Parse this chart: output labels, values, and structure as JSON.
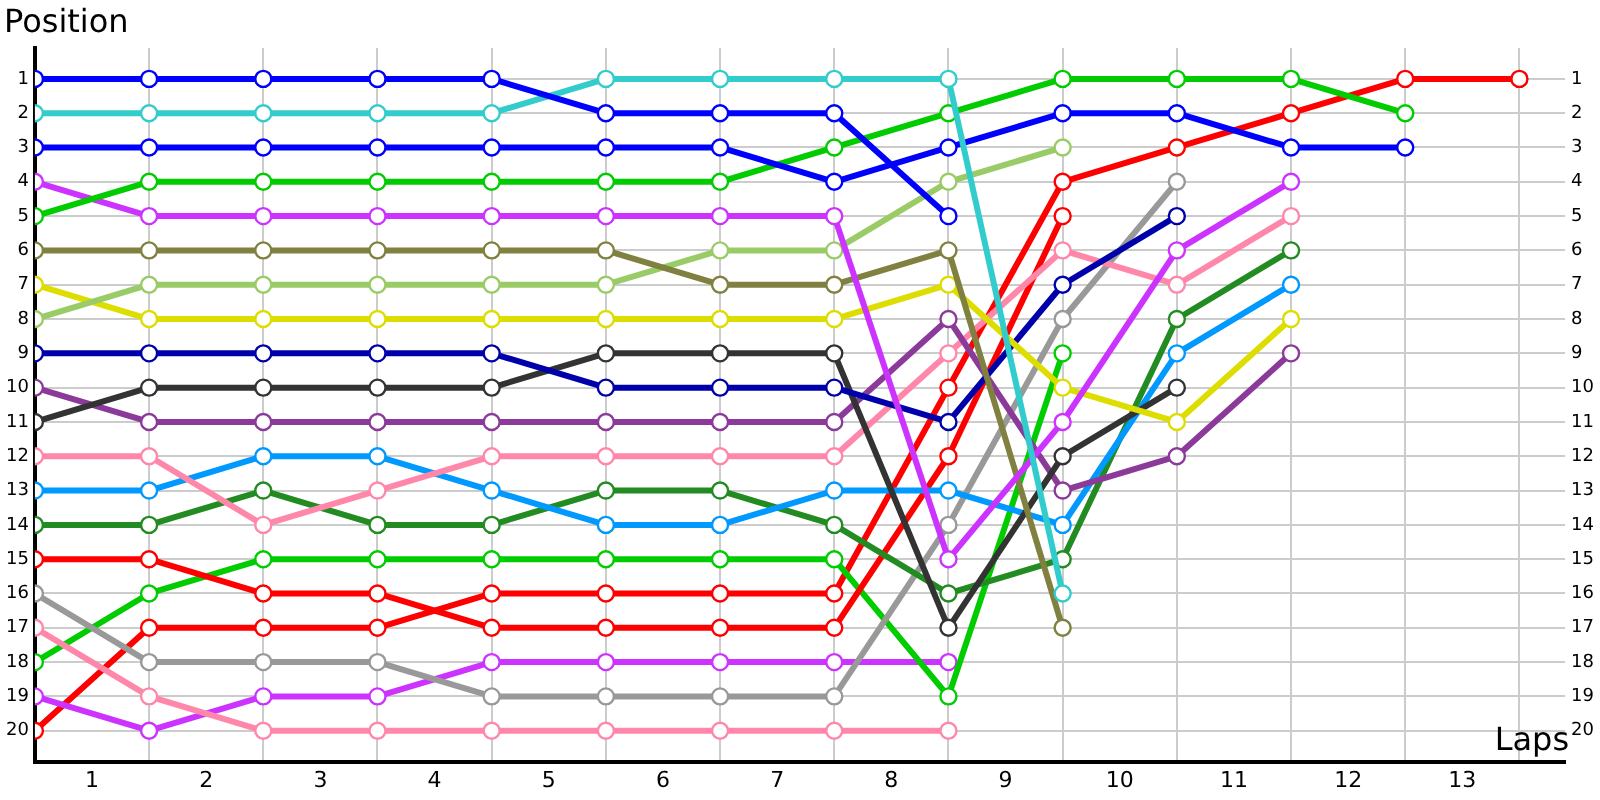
{
  "chart_data": {
    "type": "line",
    "xlabel": "Laps",
    "ylabel": "Position",
    "marker": "circle",
    "line_style": "solid",
    "grid": true,
    "legend": false,
    "x": [
      0,
      1,
      2,
      3,
      4,
      5,
      6,
      7,
      8,
      9,
      10,
      11,
      12,
      13
    ],
    "xlim": [
      0,
      13.4
    ],
    "xticks": [
      {
        "value": 0,
        "label": null
      },
      {
        "value": 0.5,
        "label": "1"
      },
      {
        "value": 1,
        "label": null
      },
      {
        "value": 1.5,
        "label": "2"
      },
      {
        "value": 2,
        "label": null
      },
      {
        "value": 2.5,
        "label": "3"
      },
      {
        "value": 3,
        "label": null
      },
      {
        "value": 3.5,
        "label": "4"
      },
      {
        "value": 4,
        "label": null
      },
      {
        "value": 4.5,
        "label": "5"
      },
      {
        "value": 5,
        "label": null
      },
      {
        "value": 5.5,
        "label": "6"
      },
      {
        "value": 6,
        "label": null
      },
      {
        "value": 6.5,
        "label": "7"
      },
      {
        "value": 7,
        "label": null
      },
      {
        "value": 7.5,
        "label": "8"
      },
      {
        "value": 8,
        "label": null
      },
      {
        "value": 8.5,
        "label": "9"
      },
      {
        "value": 9,
        "label": null
      },
      {
        "value": 9.5,
        "label": "10"
      },
      {
        "value": 10,
        "label": null
      },
      {
        "value": 10.5,
        "label": "11"
      },
      {
        "value": 11,
        "label": null
      },
      {
        "value": 11.5,
        "label": "12"
      },
      {
        "value": 12,
        "label": null
      },
      {
        "value": 12.5,
        "label": "13"
      },
      {
        "value": 13,
        "label": null
      }
    ],
    "ylim": [
      20.9,
      0.1
    ],
    "yticks": [
      1,
      2,
      3,
      4,
      5,
      6,
      7,
      8,
      9,
      10,
      11,
      12,
      13,
      14,
      15,
      16,
      17,
      18,
      19,
      20
    ],
    "y2lim": [
      20.9,
      0.1
    ],
    "y2ticks": [
      1,
      2,
      3,
      4,
      5,
      6,
      7,
      8,
      9,
      10,
      11,
      12,
      13,
      14,
      15,
      16,
      17,
      18,
      19,
      20
    ],
    "series": [
      {
        "color": "#0000ff",
        "values": [
          1,
          1,
          1,
          1,
          1,
          2,
          2,
          2,
          5,
          null,
          null,
          null,
          null,
          null
        ]
      },
      {
        "color": "#33cccc",
        "values": [
          2,
          2,
          2,
          2,
          2,
          1,
          1,
          1,
          1,
          16,
          null,
          null,
          null,
          null
        ]
      },
      {
        "color": "#0000ff",
        "values": [
          3,
          3,
          3,
          3,
          3,
          3,
          3,
          4,
          3,
          2,
          2,
          3,
          3,
          null
        ]
      },
      {
        "color": "#00cc00",
        "values": [
          5,
          4,
          4,
          4,
          4,
          4,
          4,
          3,
          2,
          1,
          1,
          1,
          2,
          null
        ]
      },
      {
        "color": "#cc33ff",
        "values": [
          4,
          5,
          5,
          5,
          5,
          5,
          5,
          5,
          15,
          11,
          6,
          4,
          null,
          null
        ]
      },
      {
        "color": "#808040",
        "values": [
          6,
          6,
          6,
          6,
          6,
          6,
          7,
          7,
          6,
          17,
          null,
          null,
          null,
          null
        ]
      },
      {
        "color": "#99cc66",
        "values": [
          8,
          7,
          7,
          7,
          7,
          7,
          6,
          6,
          4,
          3,
          null,
          null,
          null,
          null
        ]
      },
      {
        "color": "#dddd00",
        "values": [
          7,
          8,
          8,
          8,
          8,
          8,
          8,
          8,
          7,
          10,
          11,
          8,
          null,
          null
        ]
      },
      {
        "color": "#0000aa",
        "values": [
          9,
          9,
          9,
          9,
          9,
          10,
          10,
          10,
          11,
          7,
          5,
          null,
          null,
          null
        ]
      },
      {
        "color": "#333333",
        "values": [
          11,
          10,
          10,
          10,
          10,
          9,
          9,
          9,
          17,
          12,
          10,
          null,
          null,
          null
        ]
      },
      {
        "color": "#8b3a9a",
        "values": [
          10,
          11,
          11,
          11,
          11,
          11,
          11,
          11,
          8,
          13,
          12,
          9,
          null,
          null
        ]
      },
      {
        "color": "#ff88aa",
        "values": [
          12,
          12,
          14,
          13,
          12,
          12,
          12,
          12,
          9,
          6,
          7,
          5,
          null,
          null
        ]
      },
      {
        "color": "#0099ff",
        "values": [
          13,
          13,
          12,
          12,
          13,
          14,
          14,
          13,
          13,
          14,
          9,
          7,
          null,
          null
        ]
      },
      {
        "color": "#228b22",
        "values": [
          14,
          14,
          13,
          14,
          14,
          13,
          13,
          14,
          16,
          15,
          8,
          6,
          null,
          null
        ]
      },
      {
        "color": "#ff0000",
        "values": [
          15,
          15,
          16,
          16,
          17,
          17,
          17,
          17,
          12,
          5,
          null,
          null,
          null,
          null
        ]
      },
      {
        "color": "#999999",
        "values": [
          16,
          18,
          18,
          18,
          19,
          19,
          19,
          19,
          14,
          8,
          4,
          null,
          null,
          null
        ]
      },
      {
        "color": "#ff88aa",
        "values": [
          17,
          19,
          20,
          20,
          20,
          20,
          20,
          20,
          20,
          null,
          null,
          null,
          null,
          null
        ]
      },
      {
        "color": "#00cc00",
        "values": [
          18,
          16,
          15,
          15,
          15,
          15,
          15,
          15,
          19,
          9,
          null,
          null,
          null,
          null
        ]
      },
      {
        "color": "#cc33ff",
        "values": [
          19,
          20,
          19,
          19,
          18,
          18,
          18,
          18,
          18,
          null,
          null,
          null,
          null,
          null
        ]
      },
      {
        "color": "#ff0000",
        "values": [
          20,
          17,
          17,
          17,
          16,
          16,
          16,
          16,
          10,
          4,
          3,
          2,
          1,
          1
        ]
      }
    ]
  }
}
